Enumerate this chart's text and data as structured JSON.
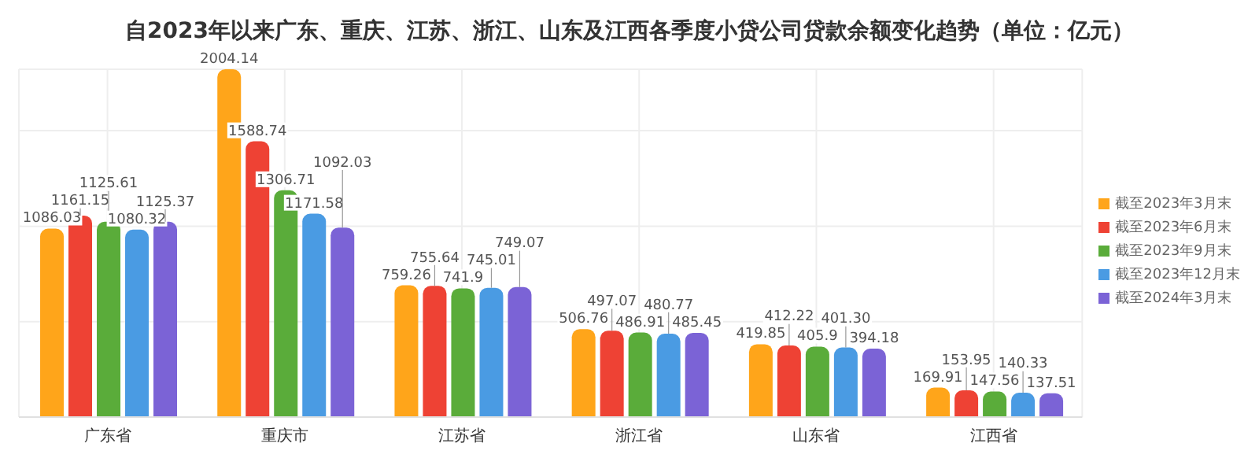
{
  "chart_data": {
    "type": "bar",
    "title": "自2023年以来广东、重庆、江苏、浙江、山东及江西各季度小贷公司贷款余额变化趋势（单位：亿元）",
    "categories": [
      "广东省",
      "重庆市",
      "江苏省",
      "浙江省",
      "山东省",
      "江西省"
    ],
    "series": [
      {
        "name": "截至2023年3月末",
        "color": "#ffa51a",
        "values": [
          1086.03,
          2004.14,
          759.26,
          506.76,
          419.85,
          169.91
        ],
        "value_labels": [
          "1086.03",
          "2004.14",
          "759.26",
          "506.76",
          "419.85",
          "169.91"
        ]
      },
      {
        "name": "截至2023年6月末",
        "color": "#ee4234",
        "values": [
          1161.15,
          1588.74,
          755.64,
          497.07,
          412.22,
          153.95
        ],
        "value_labels": [
          "1161.15",
          "1588.74",
          "755.64",
          "497.07",
          "412.22",
          "153.95"
        ]
      },
      {
        "name": "截至2023年9月末",
        "color": "#5aac3a",
        "values": [
          1125.61,
          1306.71,
          741.9,
          486.91,
          405.9,
          147.56
        ],
        "value_labels": [
          "1125.61",
          "1306.71",
          "741.9",
          "486.91",
          "405.9",
          "147.56"
        ]
      },
      {
        "name": "截至2023年12月末",
        "color": "#4a9be3",
        "values": [
          1080.32,
          1171.58,
          745.01,
          480.77,
          401.3,
          140.33
        ],
        "value_labels": [
          "1080.32",
          "1171.58",
          "745.01",
          "480.77",
          "401.30",
          "140.33"
        ]
      },
      {
        "name": "截至2024年3月末",
        "color": "#7b63d6",
        "values": [
          1125.37,
          1092.03,
          749.07,
          485.45,
          394.18,
          137.51
        ],
        "value_labels": [
          "1125.37",
          "1092.03",
          "749.07",
          "485.45",
          "394.18",
          "137.51"
        ]
      }
    ],
    "grid": true,
    "legend": "right"
  }
}
